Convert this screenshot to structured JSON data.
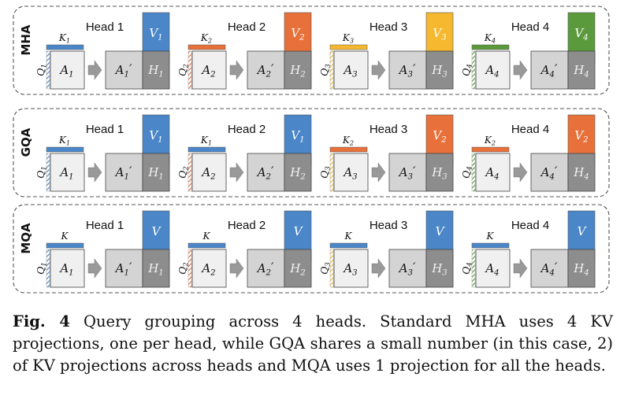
{
  "rows": [
    {
      "label": "MHA",
      "heads": [
        {
          "head": "Head 1",
          "k": "K",
          "k_sub": "1",
          "v": "V",
          "v_sub": "1",
          "color": "#4a86c8",
          "q_sub": "1",
          "a_sub": "1",
          "h_sub": "1"
        },
        {
          "head": "Head 2",
          "k": "K",
          "k_sub": "2",
          "v": "V",
          "v_sub": "2",
          "color": "#e8703a",
          "q_sub": "2",
          "a_sub": "2",
          "h_sub": "2"
        },
        {
          "head": "Head 3",
          "k": "K",
          "k_sub": "3",
          "v": "V",
          "v_sub": "3",
          "color": "#f5b82e",
          "q_sub": "3",
          "a_sub": "3",
          "h_sub": "3"
        },
        {
          "head": "Head 4",
          "k": "K",
          "k_sub": "4",
          "v": "V",
          "v_sub": "4",
          "color": "#5b9a3c",
          "q_sub": "4",
          "a_sub": "4",
          "h_sub": "4"
        }
      ]
    },
    {
      "label": "GQA",
      "heads": [
        {
          "head": "Head 1",
          "k": "K",
          "k_sub": "1",
          "v": "V",
          "v_sub": "1",
          "color": "#4a86c8",
          "q_sub": "1",
          "a_sub": "1",
          "h_sub": "1"
        },
        {
          "head": "Head 2",
          "k": "K",
          "k_sub": "1",
          "v": "V",
          "v_sub": "1",
          "color": "#4a86c8",
          "q_sub": "2",
          "a_sub": "2",
          "h_sub": "2"
        },
        {
          "head": "Head 3",
          "k": "K",
          "k_sub": "2",
          "v": "V",
          "v_sub": "2",
          "color": "#e8703a",
          "q_sub": "3",
          "a_sub": "3",
          "h_sub": "3"
        },
        {
          "head": "Head 4",
          "k": "K",
          "k_sub": "2",
          "v": "V",
          "v_sub": "2",
          "color": "#e8703a",
          "q_sub": "4",
          "a_sub": "4",
          "h_sub": "4"
        }
      ]
    },
    {
      "label": "MQA",
      "heads": [
        {
          "head": "Head 1",
          "k": "K",
          "k_sub": "",
          "v": "V",
          "v_sub": "",
          "color": "#4a86c8",
          "q_sub": "1",
          "a_sub": "1",
          "h_sub": "1"
        },
        {
          "head": "Head 2",
          "k": "K",
          "k_sub": "",
          "v": "V",
          "v_sub": "",
          "color": "#4a86c8",
          "q_sub": "2",
          "a_sub": "2",
          "h_sub": "2"
        },
        {
          "head": "Head 3",
          "k": "K",
          "k_sub": "",
          "v": "V",
          "v_sub": "",
          "color": "#4a86c8",
          "q_sub": "3",
          "a_sub": "3",
          "h_sub": "3"
        },
        {
          "head": "Head 4",
          "k": "K",
          "k_sub": "",
          "v": "V",
          "v_sub": "",
          "color": "#4a86c8",
          "q_sub": "4",
          "a_sub": "4",
          "h_sub": "4"
        }
      ]
    }
  ],
  "q_colors": [
    "#4a86c8",
    "#e8703a",
    "#f5b82e",
    "#5b9a3c"
  ],
  "labels": {
    "q": "Q",
    "a": "A",
    "a_prime": "′",
    "h": "H"
  },
  "caption": {
    "fig": "Fig. 4",
    "text": "Query grouping across 4 heads. Standard MHA uses 4 KV projections, one per head, while GQA shares a small number (in this case, 2) of KV projections across heads and MQA uses 1 projection for all the heads."
  }
}
